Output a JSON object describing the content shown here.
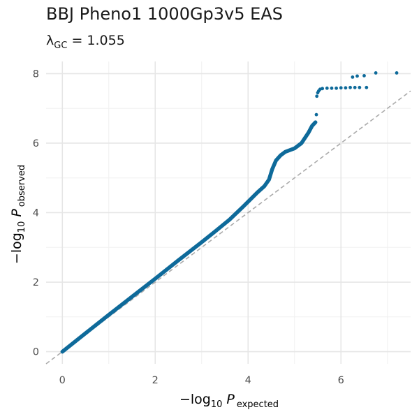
{
  "chart_data": {
    "type": "scatter",
    "title": "BBJ Pheno1 1000Gp3v5 EAS",
    "subtitle": {
      "symbol": "λ",
      "subscript": "GC",
      "equals": " = ",
      "value": "1.055"
    },
    "xlabel": {
      "prefix": "−log",
      "sub": "10",
      "var": "P",
      "varsub": "expected"
    },
    "ylabel": {
      "prefix": "−log",
      "sub": "10",
      "var": "P",
      "varsub": "observed"
    },
    "xlim": [
      -0.35,
      7.5
    ],
    "ylim": [
      -0.35,
      8.35
    ],
    "x_ticks": [
      0,
      2,
      4,
      6
    ],
    "y_ticks": [
      0,
      2,
      4,
      6,
      8
    ],
    "grid": true,
    "reference_line": {
      "type": "diagonal",
      "style": "dashed",
      "color": "#aaaaaa"
    },
    "point_color": "#0e6a9a",
    "series": [
      {
        "name": "",
        "dense_curve": [
          [
            0.0,
            0.0
          ],
          [
            0.5,
            0.53
          ],
          [
            1.0,
            1.06
          ],
          [
            1.5,
            1.58
          ],
          [
            2.0,
            2.1
          ],
          [
            2.5,
            2.63
          ],
          [
            3.0,
            3.15
          ],
          [
            3.3,
            3.47
          ],
          [
            3.6,
            3.8
          ],
          [
            3.9,
            4.18
          ],
          [
            4.2,
            4.58
          ],
          [
            4.35,
            4.76
          ],
          [
            4.45,
            4.95
          ],
          [
            4.52,
            5.25
          ],
          [
            4.6,
            5.5
          ],
          [
            4.7,
            5.65
          ],
          [
            4.8,
            5.75
          ],
          [
            5.0,
            5.85
          ],
          [
            5.15,
            6.0
          ],
          [
            5.3,
            6.3
          ],
          [
            5.38,
            6.5
          ],
          [
            5.45,
            6.6
          ]
        ],
        "points": [
          [
            5.47,
            6.82
          ],
          [
            5.48,
            7.35
          ],
          [
            5.5,
            7.45
          ],
          [
            5.52,
            7.5
          ],
          [
            5.55,
            7.55
          ],
          [
            5.6,
            7.57
          ],
          [
            5.7,
            7.58
          ],
          [
            5.8,
            7.58
          ],
          [
            5.9,
            7.58
          ],
          [
            6.0,
            7.59
          ],
          [
            6.1,
            7.59
          ],
          [
            6.2,
            7.6
          ],
          [
            6.3,
            7.6
          ],
          [
            6.4,
            7.6
          ],
          [
            6.55,
            7.6
          ],
          [
            6.25,
            7.9
          ],
          [
            6.35,
            7.93
          ],
          [
            6.5,
            7.94
          ],
          [
            6.75,
            8.02
          ],
          [
            7.2,
            8.02
          ]
        ]
      }
    ]
  }
}
